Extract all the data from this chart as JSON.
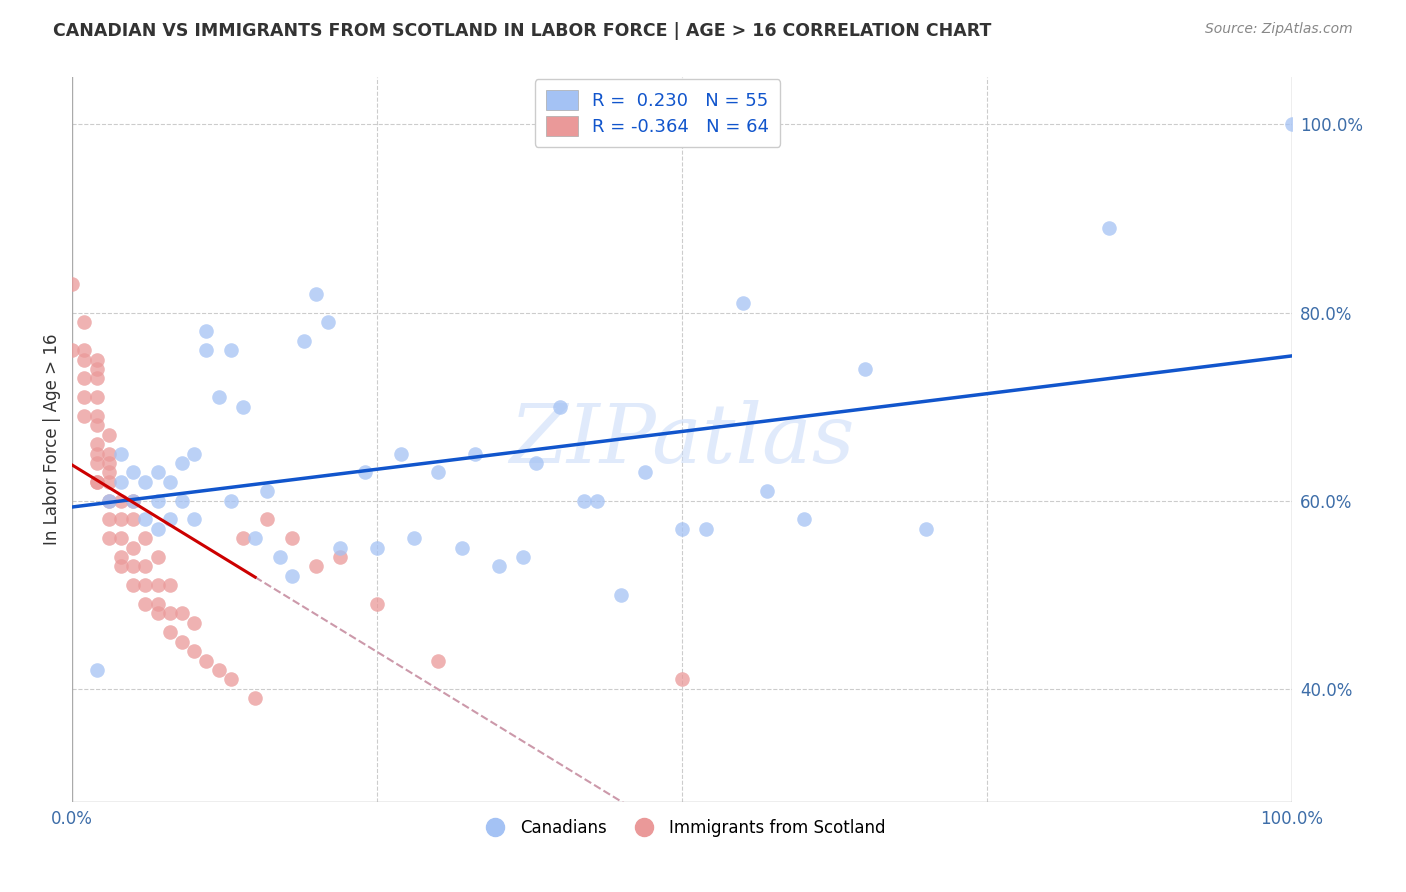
{
  "title": "CANADIAN VS IMMIGRANTS FROM SCOTLAND IN LABOR FORCE | AGE > 16 CORRELATION CHART",
  "source": "Source: ZipAtlas.com",
  "ylabel": "In Labor Force | Age > 16",
  "xlim": [
    0.0,
    1.0
  ],
  "ylim": [
    0.28,
    1.05
  ],
  "canadians_R": 0.23,
  "canadians_N": 55,
  "scotland_R": -0.364,
  "scotland_N": 64,
  "blue_color": "#a4c2f4",
  "pink_color": "#ea9999",
  "blue_line_color": "#1155cc",
  "pink_line_color": "#cc0000",
  "pink_dash_color": "#cc99aa",
  "watermark": "ZIPatlas",
  "canadians_x": [
    0.02,
    0.03,
    0.04,
    0.04,
    0.05,
    0.05,
    0.06,
    0.06,
    0.07,
    0.07,
    0.07,
    0.08,
    0.08,
    0.09,
    0.09,
    0.1,
    0.1,
    0.11,
    0.11,
    0.12,
    0.13,
    0.13,
    0.14,
    0.15,
    0.16,
    0.17,
    0.18,
    0.19,
    0.2,
    0.21,
    0.22,
    0.24,
    0.25,
    0.27,
    0.28,
    0.3,
    0.32,
    0.33,
    0.35,
    0.37,
    0.38,
    0.4,
    0.42,
    0.43,
    0.45,
    0.47,
    0.5,
    0.52,
    0.55,
    0.57,
    0.6,
    0.65,
    0.7,
    0.85,
    1.0
  ],
  "canadians_y": [
    0.42,
    0.6,
    0.62,
    0.65,
    0.6,
    0.63,
    0.58,
    0.62,
    0.57,
    0.6,
    0.63,
    0.58,
    0.62,
    0.6,
    0.64,
    0.58,
    0.65,
    0.76,
    0.78,
    0.71,
    0.6,
    0.76,
    0.7,
    0.56,
    0.61,
    0.54,
    0.52,
    0.77,
    0.82,
    0.79,
    0.55,
    0.63,
    0.55,
    0.65,
    0.56,
    0.63,
    0.55,
    0.65,
    0.53,
    0.54,
    0.64,
    0.7,
    0.6,
    0.6,
    0.5,
    0.63,
    0.57,
    0.57,
    0.81,
    0.61,
    0.58,
    0.74,
    0.57,
    0.89,
    1.0
  ],
  "scotland_x": [
    0.0,
    0.0,
    0.01,
    0.01,
    0.01,
    0.01,
    0.01,
    0.01,
    0.02,
    0.02,
    0.02,
    0.02,
    0.02,
    0.02,
    0.02,
    0.02,
    0.02,
    0.02,
    0.02,
    0.03,
    0.03,
    0.03,
    0.03,
    0.03,
    0.03,
    0.03,
    0.03,
    0.04,
    0.04,
    0.04,
    0.04,
    0.04,
    0.05,
    0.05,
    0.05,
    0.05,
    0.05,
    0.06,
    0.06,
    0.06,
    0.06,
    0.07,
    0.07,
    0.07,
    0.07,
    0.08,
    0.08,
    0.08,
    0.09,
    0.09,
    0.1,
    0.1,
    0.11,
    0.12,
    0.13,
    0.14,
    0.15,
    0.16,
    0.18,
    0.2,
    0.22,
    0.25,
    0.3,
    0.5
  ],
  "scotland_y": [
    0.76,
    0.83,
    0.69,
    0.71,
    0.73,
    0.75,
    0.76,
    0.79,
    0.62,
    0.64,
    0.65,
    0.66,
    0.68,
    0.69,
    0.71,
    0.73,
    0.74,
    0.75,
    0.62,
    0.56,
    0.58,
    0.6,
    0.62,
    0.63,
    0.65,
    0.67,
    0.64,
    0.54,
    0.56,
    0.58,
    0.6,
    0.53,
    0.51,
    0.53,
    0.55,
    0.58,
    0.6,
    0.49,
    0.51,
    0.53,
    0.56,
    0.48,
    0.49,
    0.51,
    0.54,
    0.46,
    0.48,
    0.51,
    0.45,
    0.48,
    0.44,
    0.47,
    0.43,
    0.42,
    0.41,
    0.56,
    0.39,
    0.58,
    0.56,
    0.53,
    0.54,
    0.49,
    0.43,
    0.41
  ]
}
